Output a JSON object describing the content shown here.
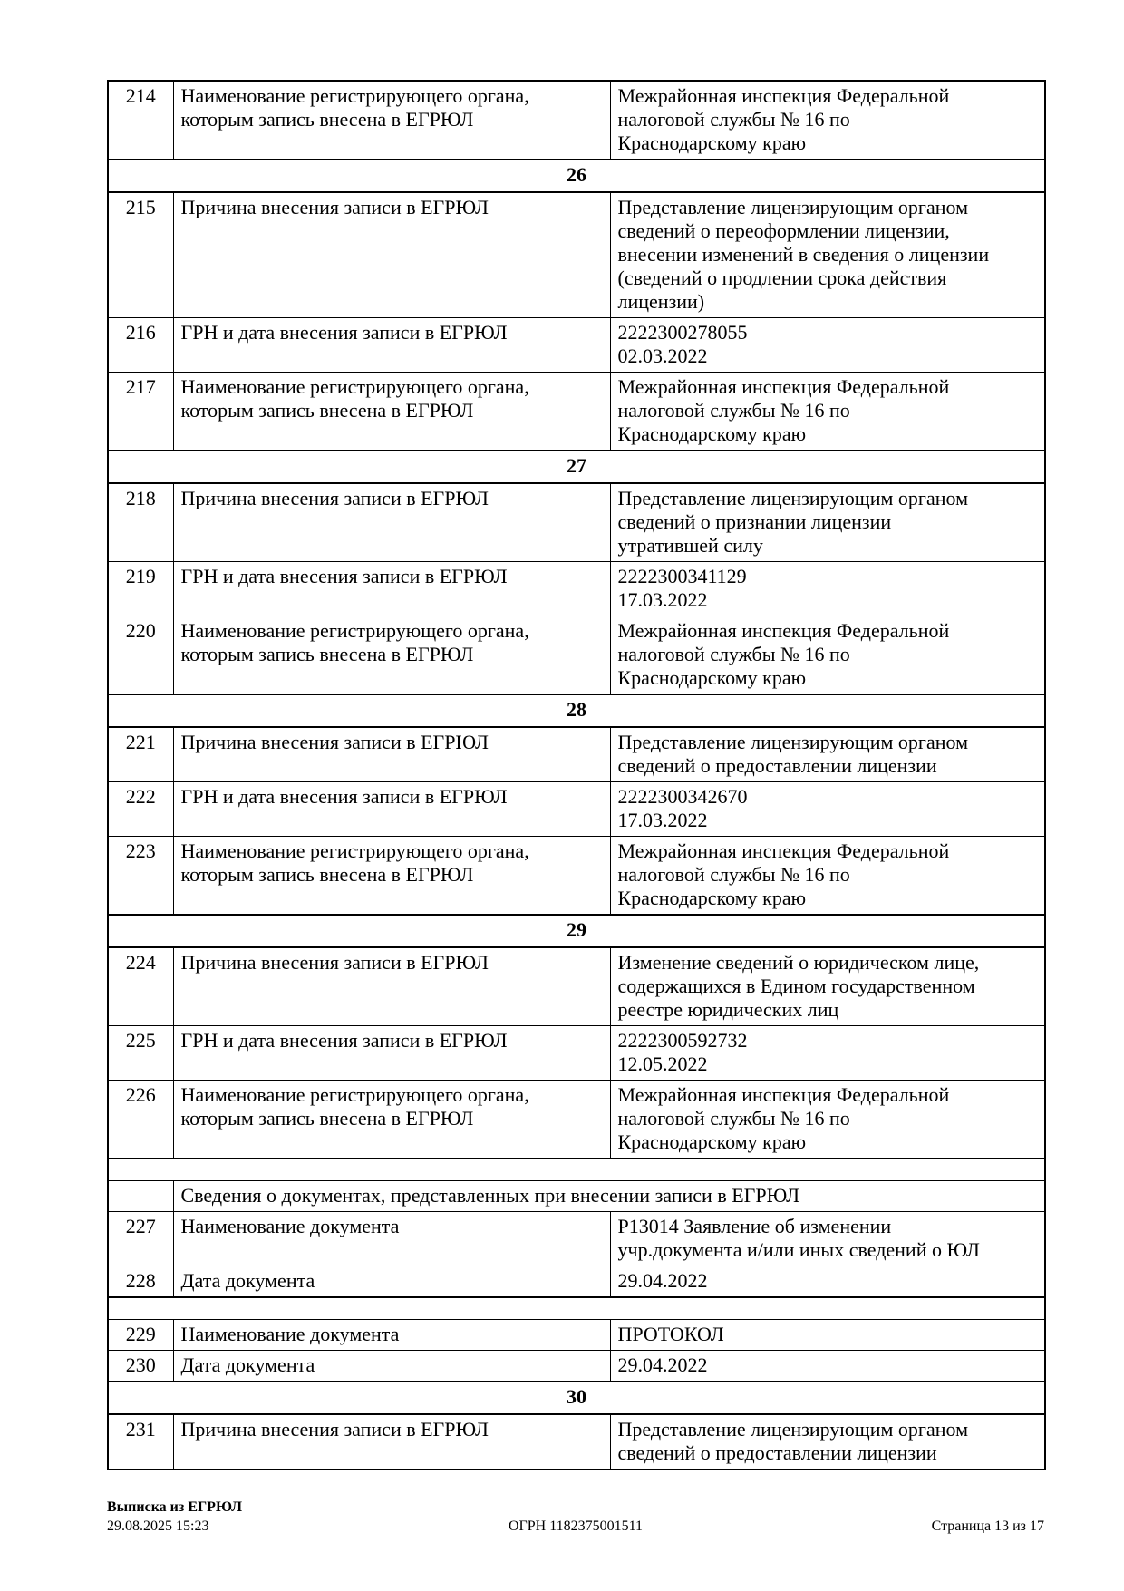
{
  "table": {
    "rows": [
      {
        "kind": "data",
        "num": "214",
        "label": "Наименование регистрирующего органа,\nкоторым запись внесена в ЕГРЮЛ",
        "value": "Межрайонная инспекция Федеральной\nналоговой службы № 16 по\nКраснодарскому краю"
      },
      {
        "kind": "section",
        "num": "26"
      },
      {
        "kind": "data",
        "num": "215",
        "label": "Причина внесения записи в ЕГРЮЛ",
        "value": "Представление лицензирующим органом\nсведений о переоформлении лицензии,\nвнесении изменений в сведения о лицензии\n(сведений о продлении срока действия\nлицензии)"
      },
      {
        "kind": "data",
        "num": "216",
        "label": "ГРН и дата внесения записи в ЕГРЮЛ",
        "value": "2222300278055\n02.03.2022"
      },
      {
        "kind": "data",
        "num": "217",
        "label": "Наименование регистрирующего органа,\nкоторым запись внесена в ЕГРЮЛ",
        "value": "Межрайонная инспекция Федеральной\nналоговой службы № 16 по\nКраснодарскому краю"
      },
      {
        "kind": "section",
        "num": "27"
      },
      {
        "kind": "data",
        "num": "218",
        "label": "Причина внесения записи в ЕГРЮЛ",
        "value": "Представление лицензирующим органом\nсведений о признании лицензии\nутратившей силу"
      },
      {
        "kind": "data",
        "num": "219",
        "label": "ГРН и дата внесения записи в ЕГРЮЛ",
        "value": "2222300341129\n17.03.2022"
      },
      {
        "kind": "data",
        "num": "220",
        "label": "Наименование регистрирующего органа,\nкоторым запись внесена в ЕГРЮЛ",
        "value": "Межрайонная инспекция Федеральной\nналоговой службы № 16 по\nКраснодарскому краю"
      },
      {
        "kind": "section",
        "num": "28"
      },
      {
        "kind": "data",
        "num": "221",
        "label": "Причина внесения записи в ЕГРЮЛ",
        "value": "Представление лицензирующим органом\nсведений о предоставлении лицензии"
      },
      {
        "kind": "data",
        "num": "222",
        "label": "ГРН и дата внесения записи в ЕГРЮЛ",
        "value": "2222300342670\n17.03.2022"
      },
      {
        "kind": "data",
        "num": "223",
        "label": "Наименование регистрирующего органа,\nкоторым запись внесена в ЕГРЮЛ",
        "value": "Межрайонная инспекция Федеральной\nналоговой службы № 16 по\nКраснодарскому краю"
      },
      {
        "kind": "section",
        "num": "29"
      },
      {
        "kind": "data",
        "num": "224",
        "label": "Причина внесения записи в ЕГРЮЛ",
        "value": "Изменение сведений о юридическом лице,\nсодержащихся в Едином государственном\nреестре юридических лиц"
      },
      {
        "kind": "data",
        "num": "225",
        "label": "ГРН и дата внесения записи в ЕГРЮЛ",
        "value": "2222300592732\n12.05.2022"
      },
      {
        "kind": "data",
        "num": "226",
        "label": "Наименование регистрирующего органа,\nкоторым запись внесена в ЕГРЮЛ",
        "value": "Межрайонная инспекция Федеральной\nналоговой службы № 16 по\nКраснодарскому краю"
      },
      {
        "kind": "spacer"
      },
      {
        "kind": "subheader",
        "text": "Сведения о документах, представленных при внесении записи в ЕГРЮЛ"
      },
      {
        "kind": "data",
        "num": "227",
        "label": "Наименование документа",
        "value": "Р13014 Заявление об изменении\nучр.документа и/или иных сведений о ЮЛ"
      },
      {
        "kind": "data",
        "num": "228",
        "label": "Дата документа",
        "value": "29.04.2022"
      },
      {
        "kind": "spacer"
      },
      {
        "kind": "data",
        "num": "229",
        "label": "Наименование документа",
        "value": "ПРОТОКОЛ"
      },
      {
        "kind": "data",
        "num": "230",
        "label": "Дата документа",
        "value": "29.04.2022"
      },
      {
        "kind": "section",
        "num": "30"
      },
      {
        "kind": "data",
        "num": "231",
        "label": "Причина внесения записи в ЕГРЮЛ",
        "value": "Представление лицензирующим органом\nсведений о предоставлении лицензии"
      }
    ]
  },
  "footer": {
    "title": "Выписка из ЕГРЮЛ",
    "datetime": "29.08.2025 15:23",
    "ogrn": "ОГРН 1182375001511",
    "page": "Страница 13 из 17"
  }
}
